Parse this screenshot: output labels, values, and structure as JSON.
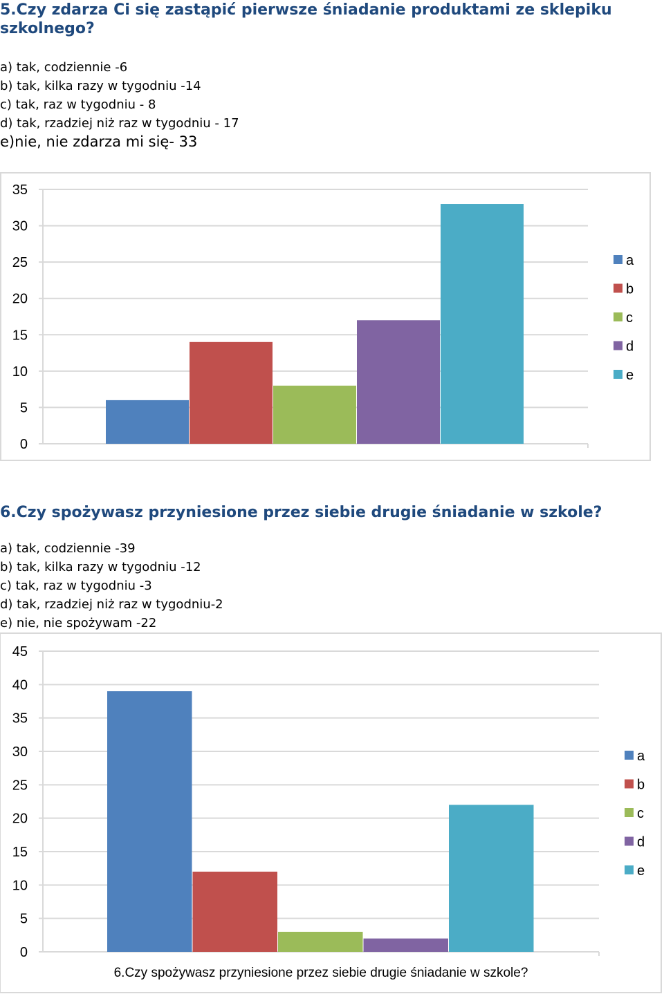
{
  "question5": {
    "title": "5.Czy zdarza Ci się zastąpić pierwsze śniadanie produktami ze sklepiku szkolnego?",
    "title_line1": "5.Czy zdarza Ci się zastąpić pierwsze śniadanie produktami ze sklepiku",
    "title_line2": "szkolnego?",
    "options": [
      "a) tak, codziennie -6",
      "b) tak, kilka razy w tygodniu -14",
      "c) tak, raz w tygodniu - 8",
      "d) tak, rzadziej niż raz w tygodniu - 17",
      "e)nie, nie zdarza mi się- 33"
    ]
  },
  "question6": {
    "title": "6.Czy spożywasz przyniesione przez siebie drugie śniadanie w szkole?",
    "options": [
      "a) tak, codziennie -39",
      "b) tak, kilka razy w tygodniu -12",
      "c) tak, raz w tygodniu -3",
      "d) tak, rzadziej niż raz w tygodniu-2",
      "e) nie, nie spożywam -22"
    ]
  },
  "colors": {
    "a": "#4f81bd",
    "b": "#c0504d",
    "c": "#9bbb59",
    "d": "#8064a2",
    "e": "#4bacc6",
    "grid": "#d9d9d9",
    "title": "#1f497d"
  },
  "chart_data": [
    {
      "type": "bar",
      "title": "",
      "categories": [
        ""
      ],
      "series": [
        {
          "name": "a",
          "values": [
            6
          ]
        },
        {
          "name": "b",
          "values": [
            14
          ]
        },
        {
          "name": "c",
          "values": [
            8
          ]
        },
        {
          "name": "d",
          "values": [
            17
          ]
        },
        {
          "name": "e",
          "values": [
            33
          ]
        }
      ],
      "yticks": [
        "0",
        "5",
        "10",
        "15",
        "20",
        "25",
        "30",
        "35"
      ],
      "ylim": [
        0,
        35
      ],
      "grid": true,
      "legend": "right"
    },
    {
      "type": "bar",
      "title": "",
      "xlabel": "6.Czy spożywasz przyniesione przez siebie drugie śniadanie w szkole?",
      "categories": [
        ""
      ],
      "series": [
        {
          "name": "a",
          "values": [
            39
          ]
        },
        {
          "name": "b",
          "values": [
            12
          ]
        },
        {
          "name": "c",
          "values": [
            3
          ]
        },
        {
          "name": "d",
          "values": [
            2
          ]
        },
        {
          "name": "e",
          "values": [
            22
          ]
        }
      ],
      "yticks": [
        "0",
        "5",
        "10",
        "15",
        "20",
        "25",
        "30",
        "35",
        "40",
        "45"
      ],
      "ylim": [
        0,
        45
      ],
      "grid": true,
      "legend": "right"
    }
  ]
}
